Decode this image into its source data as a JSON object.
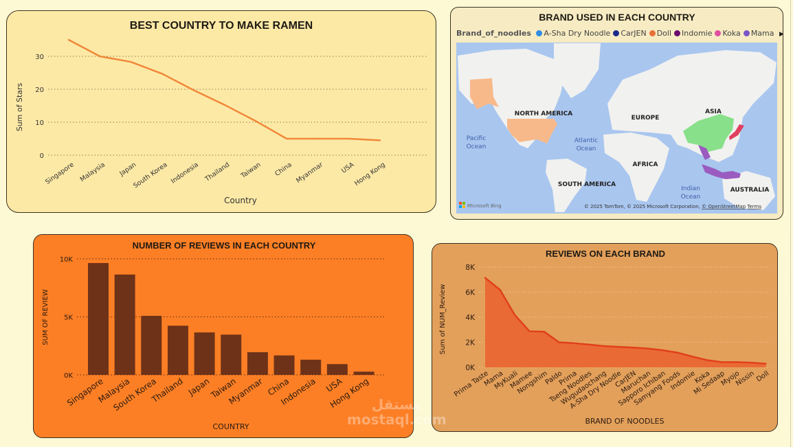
{
  "colors": {
    "line1": "#f0883a",
    "bars": "#6e3218",
    "area_line": "#e0401a",
    "area_fill": "#ea6a35",
    "ocean": "#a9c6ef",
    "land": "#f1f1ef"
  },
  "chart_data": [
    {
      "type": "line",
      "title": "BEST COUNTRY TO MAKE RAMEN",
      "xlabel": "Country",
      "ylabel": "Sum of Stars",
      "ylim": [
        0,
        36
      ],
      "yticks": [
        "0",
        "10",
        "20",
        "30"
      ],
      "ytick_values": [
        0,
        10,
        20,
        30
      ],
      "grid": true,
      "categories": [
        "Singapore",
        "Malaysia",
        "Japan",
        "South Korea",
        "Indonesia",
        "Thailand",
        "Taiwan",
        "China",
        "Myanmar",
        "USA",
        "Hong Kong"
      ],
      "values": [
        35,
        30,
        28.3,
        24.7,
        19.8,
        15.3,
        10.4,
        5,
        5,
        5,
        4.5
      ]
    },
    {
      "type": "bar",
      "title": "NUMBER OF REVIEWS IN EACH COUNTRY",
      "xlabel": "COUNTRY",
      "ylabel": "SUM OF REVIEW",
      "ylim": [
        0,
        10000
      ],
      "yticks": [
        "0K",
        "5K",
        "10K"
      ],
      "ytick_values": [
        0,
        5000,
        10000
      ],
      "grid": true,
      "categories": [
        "Singapore",
        "Malaysia",
        "South Korea",
        "Thailand",
        "Japan",
        "Taiwan",
        "Myanmar",
        "China",
        "Indonesia",
        "USA",
        "Hong Kong"
      ],
      "values": [
        9640,
        8650,
        5090,
        4240,
        3660,
        3470,
        1960,
        1680,
        1310,
        930,
        280
      ]
    },
    {
      "type": "area",
      "title": "REVIEWS ON EACH BRAND",
      "xlabel": "BRAND OF NOODLES",
      "ylabel": "Sum of NUM_Review",
      "ylim": [
        0,
        8000
      ],
      "yticks": [
        "0K",
        "2K",
        "4K",
        "6K",
        "8K"
      ],
      "ytick_values": [
        0,
        2000,
        4000,
        6000,
        8000
      ],
      "grid": true,
      "categories": [
        "Prima Taste",
        "Mama",
        "MyKuali",
        "Mamee",
        "Nongshim",
        "Paldo",
        "Prima",
        "Tseng Noodles",
        "Wugudaochang",
        "A-Sha Dry Noodle",
        "CarJEN",
        "Maruchan",
        "Sapporo Ichiban",
        "Samyang Foods",
        "Indomie",
        "Koka",
        "Mi Sedaap",
        "Myojo",
        "Nissin",
        "Doll"
      ],
      "values": [
        7140,
        6200,
        4190,
        2880,
        2840,
        2000,
        1930,
        1820,
        1700,
        1640,
        1580,
        1500,
        1370,
        1180,
        870,
        580,
        420,
        420,
        380,
        290
      ]
    }
  ],
  "map": {
    "title": "BRAND USED IN EACH COUNTRY",
    "legend_title": "Brand_of_noodles",
    "legend": [
      {
        "label": "A-Sha Dry Noodle",
        "color": "#2f8de4"
      },
      {
        "label": "CarJEN",
        "color": "#1a2a8c"
      },
      {
        "label": "Doll",
        "color": "#e6723a"
      },
      {
        "label": "Indomie",
        "color": "#6b0a6e"
      },
      {
        "label": "Koka",
        "color": "#e04fa0"
      },
      {
        "label": "Mama",
        "color": "#7b55c8"
      }
    ],
    "legend_more": "▶",
    "labels": {
      "na": "NORTH AMERICA",
      "eu": "EUROPE",
      "asia": "ASIA",
      "af": "AFRICA",
      "sa": "SOUTH AMERICA",
      "au": "AUSTRALIA",
      "pac1": "Pacific",
      "pac2": "Ocean",
      "atl1": "Atlantic",
      "atl2": "Ocean",
      "ind1": "Indian",
      "ind2": "Ocean"
    },
    "bing": "Microsoft Bing",
    "copyright": "© 2025 TomTom, © 2025 Microsoft Corporation,",
    "osm": "© OpenStreetMap",
    "terms": "Terms",
    "region_colors": {
      "usa": "#f8b98a",
      "china": "#88e08a",
      "japan": "#e04060",
      "sea": "#9a5cc0"
    }
  },
  "watermark": "مستقل mostaql.com"
}
